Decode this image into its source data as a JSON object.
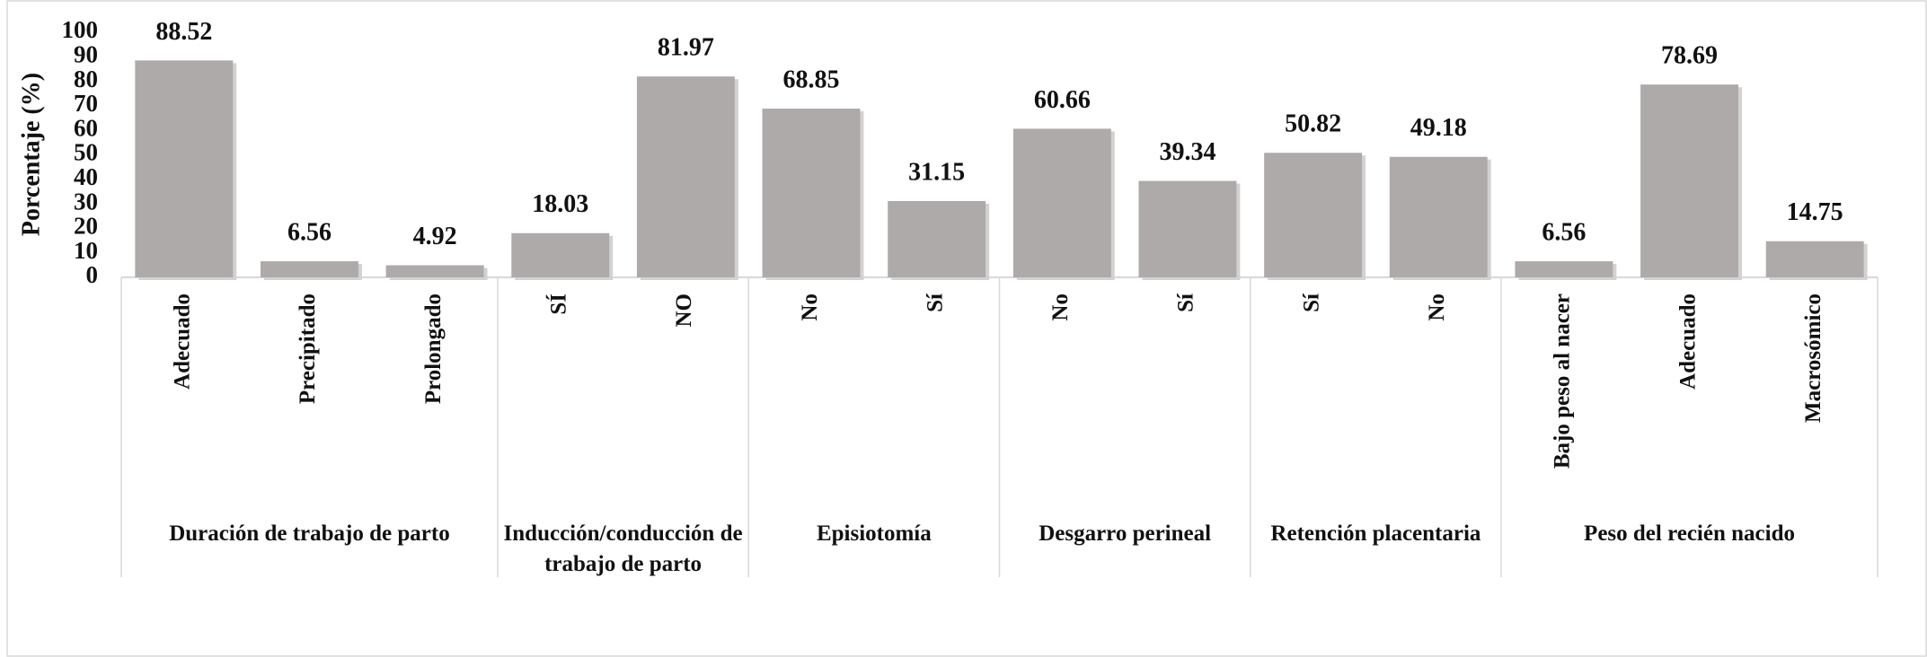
{
  "chart_data": {
    "type": "bar",
    "y_label": "Porcentaje (%)",
    "color": "#aeaaa9",
    "ylim": [
      0,
      100
    ],
    "yticks": [
      0,
      10,
      20,
      30,
      40,
      50,
      60,
      70,
      80,
      90,
      100
    ],
    "grid": false,
    "groups": [
      {
        "name": "Duración de trabajo de parto",
        "categories": [
          "Adecuado",
          "Precipitado",
          "Prolongado"
        ],
        "values": [
          88.52,
          6.56,
          4.92
        ]
      },
      {
        "name": "Inducción/conducción de trabajo de parto",
        "categories": [
          "SÍ",
          "NO"
        ],
        "values": [
          18.03,
          81.97
        ]
      },
      {
        "name": "Episiotomía",
        "categories": [
          "No",
          "Sí"
        ],
        "values": [
          68.85,
          31.15
        ]
      },
      {
        "name": "Desgarro perineal",
        "categories": [
          "No",
          "Sí"
        ],
        "values": [
          60.66,
          39.34
        ]
      },
      {
        "name": "Retención placentaria",
        "categories": [
          "Sí",
          "No"
        ],
        "values": [
          50.82,
          49.18
        ]
      },
      {
        "name": "Peso del recién nacido",
        "categories": [
          "Bajo peso al nacer",
          "Adecuado",
          "Macrosómico"
        ],
        "values": [
          6.56,
          78.69,
          14.75
        ]
      }
    ]
  }
}
